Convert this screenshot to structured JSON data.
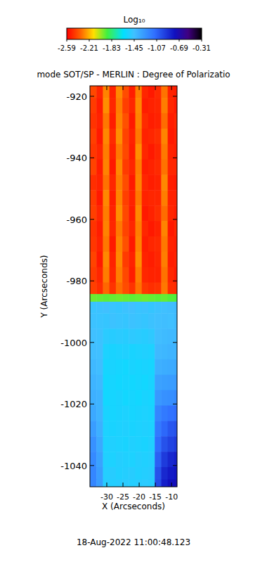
{
  "chart_data": {
    "type": "heatmap",
    "title": "mode SOT/SP - MERLIN : Degree of Polarizatio",
    "x_label": "X (Arcseconds)",
    "y_label": "Y (Arcseconds)",
    "annotations": [
      "18-Aug-2022 11:00:48.123"
    ],
    "x": [
      -34.2,
      -32.2,
      -30.2,
      -28.2,
      -26.2,
      -24.2,
      -22.2,
      -20.2,
      -18.2,
      -16.2,
      -14.2,
      -12.2,
      -10.2,
      -8.2
    ],
    "y": [
      -918,
      -923,
      -928,
      -933,
      -938,
      -943,
      -948,
      -953,
      -958,
      -963,
      -968,
      -973,
      -978,
      -983,
      -985.5,
      -988,
      -993,
      -998,
      -1003,
      -1008,
      -1013,
      -1018,
      -1023,
      -1028,
      -1033,
      -1038,
      -1043,
      -1046
    ],
    "cells": [
      [
        -2.42,
        -2.5,
        -2.3,
        -2.51,
        -2.29,
        -2.41,
        -2.52,
        -2.31,
        -2.5,
        -2.53,
        -2.49,
        -2.33,
        -2.51,
        -2.52
      ],
      [
        -2.45,
        -2.52,
        -2.28,
        -2.5,
        -2.31,
        -2.44,
        -2.5,
        -2.29,
        -2.52,
        -2.51,
        -2.5,
        -2.31,
        -2.5,
        -2.53
      ],
      [
        -2.47,
        -2.51,
        -2.32,
        -2.52,
        -2.3,
        -2.4,
        -2.53,
        -2.3,
        -2.49,
        -2.52,
        -2.51,
        -2.34,
        -2.52,
        -2.5
      ],
      [
        -2.44,
        -2.53,
        -2.29,
        -2.49,
        -2.28,
        -2.43,
        -2.51,
        -2.32,
        -2.51,
        -2.5,
        -2.48,
        -2.3,
        -2.53,
        -2.51
      ],
      [
        -2.46,
        -2.5,
        -2.31,
        -2.51,
        -2.32,
        -2.42,
        -2.52,
        -2.28,
        -2.5,
        -2.53,
        -2.5,
        -2.32,
        -2.51,
        -2.52
      ],
      [
        -2.43,
        -2.52,
        -2.3,
        -2.53,
        -2.29,
        -2.45,
        -2.5,
        -2.31,
        -2.52,
        -2.51,
        -2.49,
        -2.33,
        -2.5,
        -2.5
      ],
      [
        -2.48,
        -2.51,
        -2.33,
        -2.5,
        -2.31,
        -2.41,
        -2.53,
        -2.3,
        -2.5,
        -2.52,
        -2.51,
        -2.29,
        -2.52,
        -2.53
      ],
      [
        -2.45,
        -2.53,
        -2.29,
        -2.52,
        -2.3,
        -2.44,
        -2.51,
        -2.32,
        -2.51,
        -2.5,
        -2.5,
        -2.31,
        -2.51,
        -2.51
      ],
      [
        -2.44,
        -2.5,
        -2.31,
        -2.51,
        -2.28,
        -2.42,
        -2.52,
        -2.29,
        -2.53,
        -2.51,
        -2.48,
        -2.34,
        -2.5,
        -2.52
      ],
      [
        -2.47,
        -2.52,
        -2.3,
        -2.5,
        -2.32,
        -2.43,
        -2.5,
        -2.31,
        -2.5,
        -2.53,
        -2.51,
        -2.3,
        -2.53,
        -2.5
      ],
      [
        -2.46,
        -2.51,
        -2.32,
        -2.53,
        -2.3,
        -2.4,
        -2.53,
        -2.3,
        -2.52,
        -2.5,
        -2.49,
        -2.32,
        -2.51,
        -2.52
      ],
      [
        -2.43,
        -2.53,
        -2.29,
        -2.51,
        -2.29,
        -2.45,
        -2.51,
        -2.28,
        -2.51,
        -2.52,
        -2.5,
        -2.31,
        -2.52,
        -2.51
      ],
      [
        -2.45,
        -2.5,
        -2.31,
        -2.5,
        -2.31,
        -2.42,
        -2.52,
        -2.31,
        -2.5,
        -2.51,
        -2.51,
        -2.33,
        -2.5,
        -2.53
      ],
      [
        -2.44,
        -2.48,
        -2.35,
        -2.47,
        -2.34,
        -2.41,
        -2.47,
        -2.33,
        -2.46,
        -2.48,
        -2.47,
        -2.32,
        -2.48,
        -2.49
      ],
      [
        -1.96,
        -1.95,
        -1.94,
        -1.95,
        -1.96,
        -1.95,
        -1.94,
        -1.95,
        -1.96,
        -1.95,
        -1.94,
        -1.95,
        -1.93,
        -1.92
      ],
      [
        -1.47,
        -1.46,
        -1.45,
        -1.47,
        -1.48,
        -1.46,
        -1.45,
        -1.47,
        -1.46,
        -1.48,
        -1.46,
        -1.45,
        -1.44,
        -1.43
      ],
      [
        -1.46,
        -1.47,
        -1.48,
        -1.46,
        -1.47,
        -1.48,
        -1.46,
        -1.47,
        -1.48,
        -1.46,
        -1.45,
        -1.44,
        -1.45,
        -1.43
      ],
      [
        -1.45,
        -1.46,
        -1.51,
        -1.52,
        -1.51,
        -1.52,
        -1.5,
        -1.51,
        -1.52,
        -1.5,
        -1.44,
        -1.43,
        -1.42,
        -1.42
      ],
      [
        -1.44,
        -1.45,
        -1.55,
        -1.56,
        -1.55,
        -1.54,
        -1.56,
        -1.55,
        -1.54,
        -1.55,
        -1.42,
        -1.41,
        -1.4,
        -1.4
      ],
      [
        -1.42,
        -1.44,
        -1.57,
        -1.56,
        -1.57,
        -1.58,
        -1.56,
        -1.57,
        -1.56,
        -1.57,
        -1.38,
        -1.37,
        -1.36,
        -1.35
      ],
      [
        -1.4,
        -1.42,
        -1.58,
        -1.57,
        -1.58,
        -1.57,
        -1.58,
        -1.57,
        -1.58,
        -1.56,
        -1.32,
        -1.31,
        -1.3,
        -1.29
      ],
      [
        -1.38,
        -1.4,
        -1.58,
        -1.57,
        -1.56,
        -1.58,
        -1.57,
        -1.58,
        -1.56,
        -1.57,
        -1.28,
        -1.25,
        -1.24,
        -1.22
      ],
      [
        -1.35,
        -1.4,
        -1.56,
        -1.57,
        -1.56,
        -1.55,
        -1.57,
        -1.56,
        -1.55,
        -1.56,
        -1.2,
        -1.15,
        -1.12,
        -1.1
      ],
      [
        -1.3,
        -1.38,
        -1.55,
        -1.56,
        -1.55,
        -1.54,
        -1.56,
        -1.55,
        -1.54,
        -1.55,
        -1.15,
        -1.08,
        -1.02,
        -1.0
      ],
      [
        -1.25,
        -1.35,
        -1.55,
        -1.54,
        -1.55,
        -1.56,
        -1.54,
        -1.55,
        -1.56,
        -1.54,
        -1.1,
        -1.0,
        -0.95,
        -0.92
      ],
      [
        -1.22,
        -1.32,
        -1.54,
        -1.55,
        -1.53,
        -1.54,
        -1.55,
        -1.53,
        -1.54,
        -1.53,
        -1.05,
        -0.92,
        -0.85,
        -0.82
      ],
      [
        -1.2,
        -1.3,
        -1.53,
        -1.52,
        -1.54,
        -1.53,
        -1.52,
        -1.54,
        -1.53,
        -1.52,
        -1.0,
        -0.85,
        -0.8,
        -0.78
      ],
      [
        -1.2,
        -1.3,
        -1.52,
        -1.53,
        -1.52,
        -1.51,
        -1.53,
        -1.52,
        -1.51,
        -1.52,
        -0.98,
        -0.82,
        -0.76,
        -0.74
      ]
    ],
    "xlim": [
      -35.2,
      -8.3
    ],
    "ylim": [
      -1046.9,
      -916.6
    ],
    "xticks": [
      -30,
      -25,
      -20,
      -15,
      -10
    ],
    "yticks": [
      -1040,
      -1020,
      -1000,
      -980,
      -960,
      -940,
      -920
    ],
    "colorbar": {
      "label": "Log₁₀",
      "range": [
        -2.59,
        -0.31
      ],
      "ticks": [
        -2.59,
        -2.21,
        -1.83,
        -1.45,
        -1.07,
        -0.69,
        -0.31
      ]
    }
  }
}
